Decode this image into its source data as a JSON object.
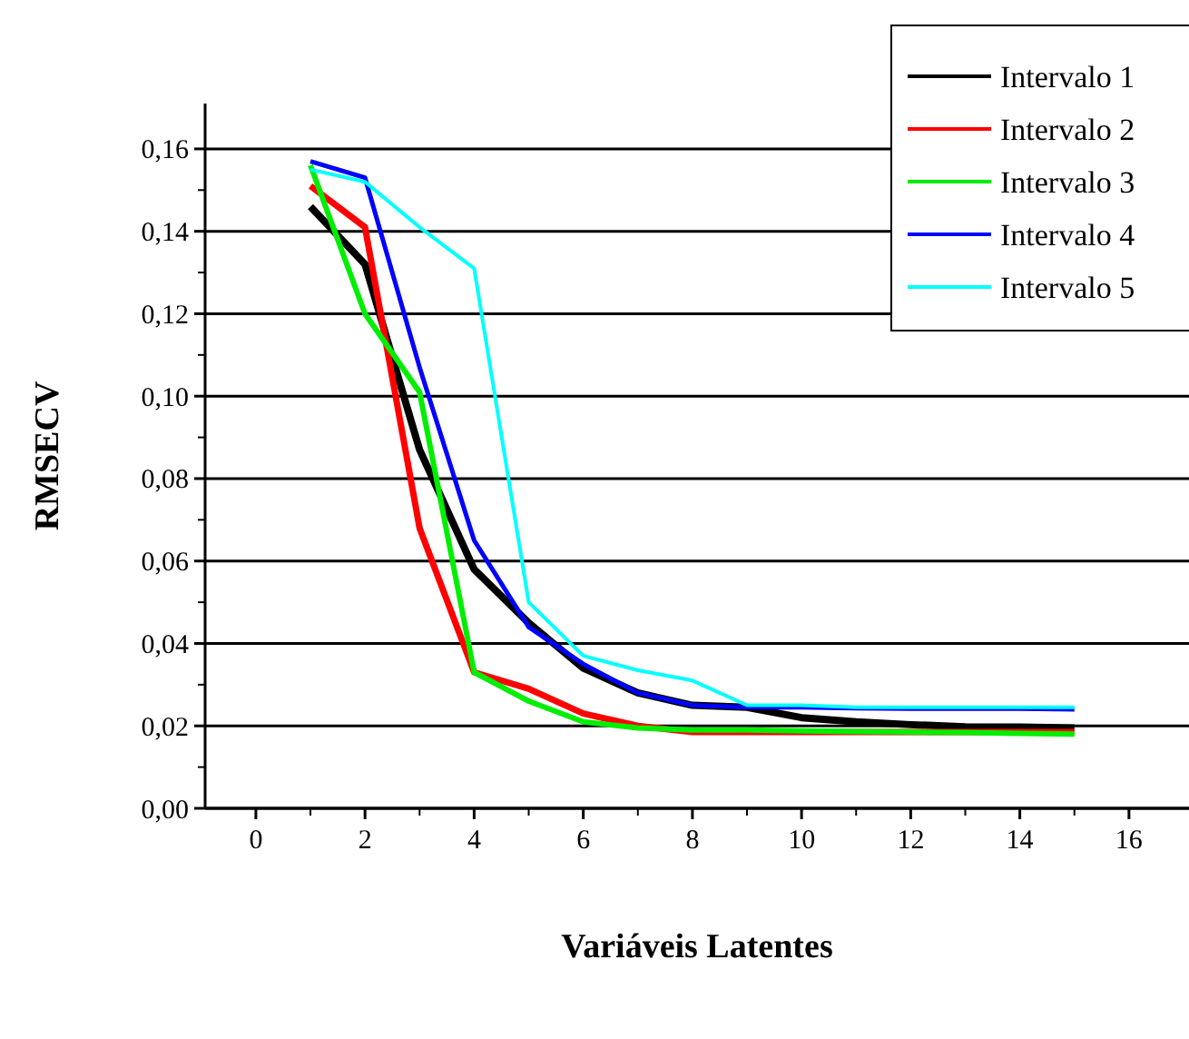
{
  "chart_data": {
    "type": "line",
    "xlabel": "Variáveis Latentes",
    "ylabel": "RMSECV",
    "x": [
      1,
      2,
      3,
      4,
      5,
      6,
      7,
      8,
      9,
      10,
      11,
      12,
      13,
      14,
      15
    ],
    "series": [
      {
        "name": "Intervalo 1",
        "color": "#000000",
        "values": [
          0.146,
          0.132,
          0.087,
          0.058,
          0.045,
          0.034,
          0.028,
          0.025,
          0.0245,
          0.022,
          0.021,
          0.0203,
          0.0198,
          0.0197,
          0.0195
        ]
      },
      {
        "name": "Intervalo 2",
        "color": "#ff0000",
        "values": [
          0.151,
          0.141,
          0.068,
          0.033,
          0.029,
          0.023,
          0.02,
          0.0185,
          0.0185,
          0.0185,
          0.0185,
          0.0185,
          0.0185,
          0.0185,
          0.0185
        ]
      },
      {
        "name": "Intervalo 3",
        "color": "#00ee00",
        "values": [
          0.156,
          0.12,
          0.101,
          0.033,
          0.026,
          0.021,
          0.0195,
          0.019,
          0.019,
          0.0188,
          0.0186,
          0.0185,
          0.0184,
          0.0182,
          0.018
        ]
      },
      {
        "name": "Intervalo 4",
        "color": "#0000ff",
        "values": [
          0.157,
          0.153,
          0.107,
          0.065,
          0.044,
          0.035,
          0.028,
          0.025,
          0.0245,
          0.0245,
          0.0243,
          0.0242,
          0.0242,
          0.0242,
          0.024
        ]
      },
      {
        "name": "Intervalo 5",
        "color": "#00ffff",
        "values": [
          0.155,
          0.152,
          0.141,
          0.131,
          0.05,
          0.037,
          0.0335,
          0.031,
          0.025,
          0.025,
          0.0245,
          0.0245,
          0.0245,
          0.0245,
          0.0245
        ]
      }
    ],
    "xlim": [
      -0.93,
      17.1
    ],
    "xticks": [
      0,
      2,
      4,
      6,
      8,
      10,
      12,
      14,
      16
    ],
    "ylim": [
      0,
      0.171
    ],
    "yticks": [
      {
        "value": 0,
        "label": "0,00"
      },
      {
        "value": 0.02,
        "label": "0,02"
      },
      {
        "value": 0.04,
        "label": "0,04"
      },
      {
        "value": 0.06,
        "label": "0,06"
      },
      {
        "value": 0.08,
        "label": "0,08"
      },
      {
        "value": 0.1,
        "label": "0,10"
      },
      {
        "value": 0.12,
        "label": "0,12"
      },
      {
        "value": 0.14,
        "label": "0,14"
      },
      {
        "value": 0.16,
        "label": "0,16"
      }
    ],
    "grid": "y",
    "legend": "top right",
    "marker": "none",
    "line_style": "solid"
  }
}
